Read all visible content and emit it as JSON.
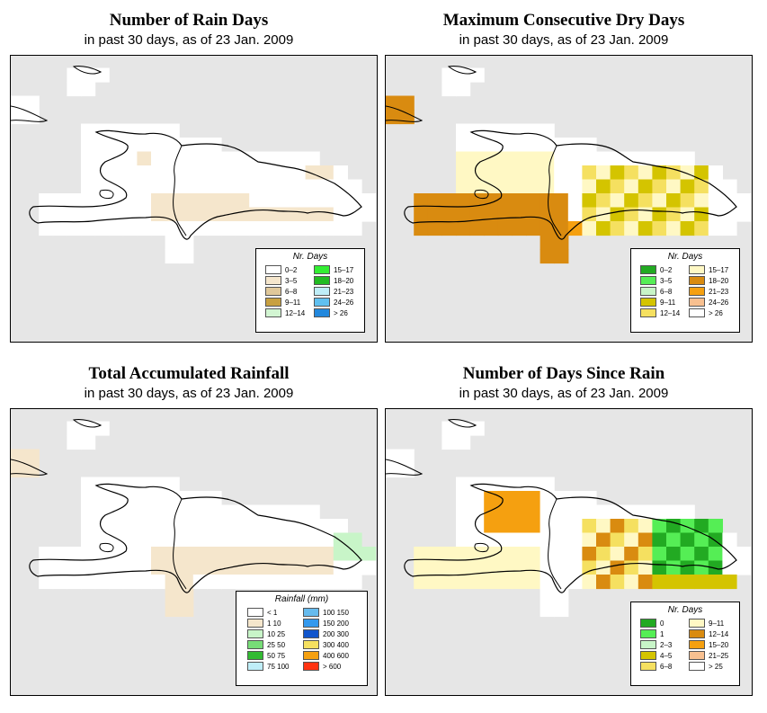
{
  "colors": {
    "background": "#e6e6e6",
    "land": "#ffffff",
    "outline": "#000000"
  },
  "panels": [
    {
      "title": "Number of Rain Days",
      "subtitle": "in past 30 days, as of  23 Jan. 2009",
      "legend": {
        "title": "Nr. Days",
        "items": [
          {
            "label": "0–2",
            "color": "#ffffff"
          },
          {
            "label": "3–5",
            "color": "#f5e6cc"
          },
          {
            "label": "6–8",
            "color": "#e0c89a"
          },
          {
            "label": "9–11",
            "color": "#c8a040"
          },
          {
            "label": "12–14",
            "color": "#d2f5d2"
          },
          {
            "label": "15–17",
            "color": "#33ee33"
          },
          {
            "label": "18–20",
            "color": "#22bb22"
          },
          {
            "label": "21–23",
            "color": "#bfeef8"
          },
          {
            "label": "24–26",
            "color": "#60c0f0"
          },
          {
            "label": "> 26",
            "color": "#2288dd"
          }
        ]
      },
      "cells": [
        [
          [
            10,
            3
          ],
          [
            11,
            3
          ],
          [
            3,
            4
          ],
          [
            4,
            4
          ],
          [
            1,
            5
          ],
          [
            2,
            5
          ],
          [
            1,
            6
          ],
          [
            2,
            6
          ],
          [
            3,
            9
          ],
          [
            4,
            9
          ],
          [
            5,
            9
          ],
          [
            6,
            9
          ],
          [
            14,
            13
          ],
          [
            15,
            13
          ],
          [
            16,
            13
          ],
          [
            18,
            13
          ]
        ],
        "#ffffff"
      ]
    },
    {
      "title": "Maximum Consecutive Dry Days",
      "subtitle": "in past 30 days, as of  23 Jan. 2009",
      "legend": {
        "title": "Nr. Days",
        "items": [
          {
            "label": "0–2",
            "color": "#22aa22"
          },
          {
            "label": "3–5",
            "color": "#55ee55"
          },
          {
            "label": "6–8",
            "color": "#c8f5c8"
          },
          {
            "label": "9–11",
            "color": "#d4c400"
          },
          {
            "label": "12–14",
            "color": "#f5e060"
          },
          {
            "label": "15–17",
            "color": "#fff8c4"
          },
          {
            "label": "18–20",
            "color": "#d98b10"
          },
          {
            "label": "21–23",
            "color": "#f5a010"
          },
          {
            "label": "24–26",
            "color": "#f8c090"
          },
          {
            "label": "> 26",
            "color": "#ffffff"
          }
        ]
      }
    },
    {
      "title": "Total Accumulated Rainfall",
      "subtitle": "in past 30 days, as of  23 Jan. 2009",
      "legend": {
        "title": "Rainfall (mm)",
        "items": [
          {
            "label": "< 1",
            "color": "#ffffff"
          },
          {
            "label": "1     10",
            "color": "#f5e6cc"
          },
          {
            "label": "10    25",
            "color": "#c8f5c8"
          },
          {
            "label": "25    50",
            "color": "#77dd77"
          },
          {
            "label": "50    75",
            "color": "#33bb33"
          },
          {
            "label": "75   100",
            "color": "#bfeef8"
          },
          {
            "label": "100  150",
            "color": "#66bbee"
          },
          {
            "label": "150  200",
            "color": "#3399ee"
          },
          {
            "label": "200  300",
            "color": "#1155cc"
          },
          {
            "label": "300  400",
            "color": "#f5e060"
          },
          {
            "label": "400  600",
            "color": "#f5a010"
          },
          {
            "label": "> 600",
            "color": "#ff3311"
          }
        ]
      }
    },
    {
      "title": "Number of Days Since Rain",
      "subtitle": "in past 30 days, as of  23 Jan. 2009",
      "legend": {
        "title": "Nr. Days",
        "items": [
          {
            "label": "0",
            "color": "#22aa22"
          },
          {
            "label": "1",
            "color": "#55ee55"
          },
          {
            "label": "2–3",
            "color": "#c8f5c8"
          },
          {
            "label": "4–5",
            "color": "#d4c400"
          },
          {
            "label": "6–8",
            "color": "#f5e060"
          },
          {
            "label": "9–11",
            "color": "#fff8c4"
          },
          {
            "label": "12–14",
            "color": "#d98b10"
          },
          {
            "label": "15–20",
            "color": "#f5a010"
          },
          {
            "label": "21–25",
            "color": "#f8c090"
          },
          {
            "label": "> 25",
            "color": "#ffffff"
          }
        ]
      }
    }
  ]
}
